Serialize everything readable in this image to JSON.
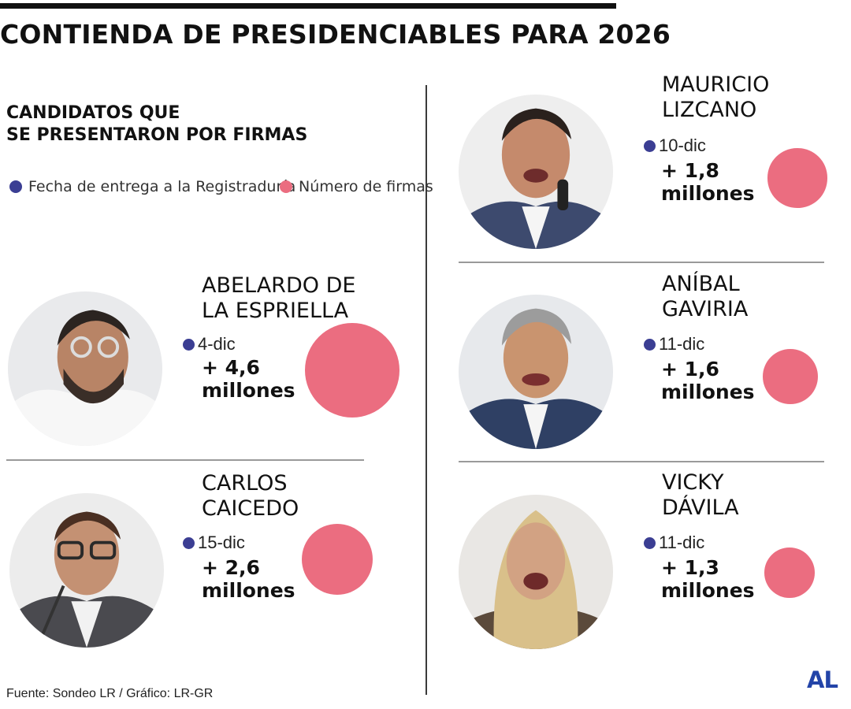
{
  "title": "CONTIENDA DE PRESIDENCIABLES PARA 2026",
  "subtitle": {
    "line1": "CANDIDATOS QUE",
    "line2": "SE PRESENTARON POR FIRMAS"
  },
  "legend": {
    "date_label": "Fecha de entrega a la Registraduría",
    "signatures_label": "Número de firmas"
  },
  "colors": {
    "date_dot": "#3b3e93",
    "bubble": "#eb6d80",
    "logo": "#2344a8"
  },
  "source": "Fuente: Sondeo LR / Gráfico: LR-GR",
  "logo": "AL",
  "chart_data": {
    "type": "bubble",
    "title": "CONTIENDA DE PRESIDENCIABLES PARA 2026",
    "series": [
      {
        "name": "Número de firmas",
        "unit": "millones"
      }
    ],
    "candidates": [
      {
        "name_line1": "ABELARDO DE",
        "name_line2": "LA ESPRIELLA",
        "date": "4-dic",
        "signatures_text": "+ 4,6",
        "unit": "millones",
        "signatures_millions": 4.6
      },
      {
        "name_line1": "CARLOS",
        "name_line2": "CAICEDO",
        "date": "15-dic",
        "signatures_text": "+ 2,6",
        "unit": "millones",
        "signatures_millions": 2.6
      },
      {
        "name_line1": "MAURICIO",
        "name_line2": "LIZCANO",
        "date": "10-dic",
        "signatures_text": "+ 1,8",
        "unit": "millones",
        "signatures_millions": 1.8
      },
      {
        "name_line1": "ANÍBAL",
        "name_line2": "GAVIRIA",
        "date": "11-dic",
        "signatures_text": "+ 1,6",
        "unit": "millones",
        "signatures_millions": 1.6
      },
      {
        "name_line1": "VICKY",
        "name_line2": "DÁVILA",
        "date": "11-dic",
        "signatures_text": "+ 1,3",
        "unit": "millones",
        "signatures_millions": 1.3
      }
    ]
  }
}
